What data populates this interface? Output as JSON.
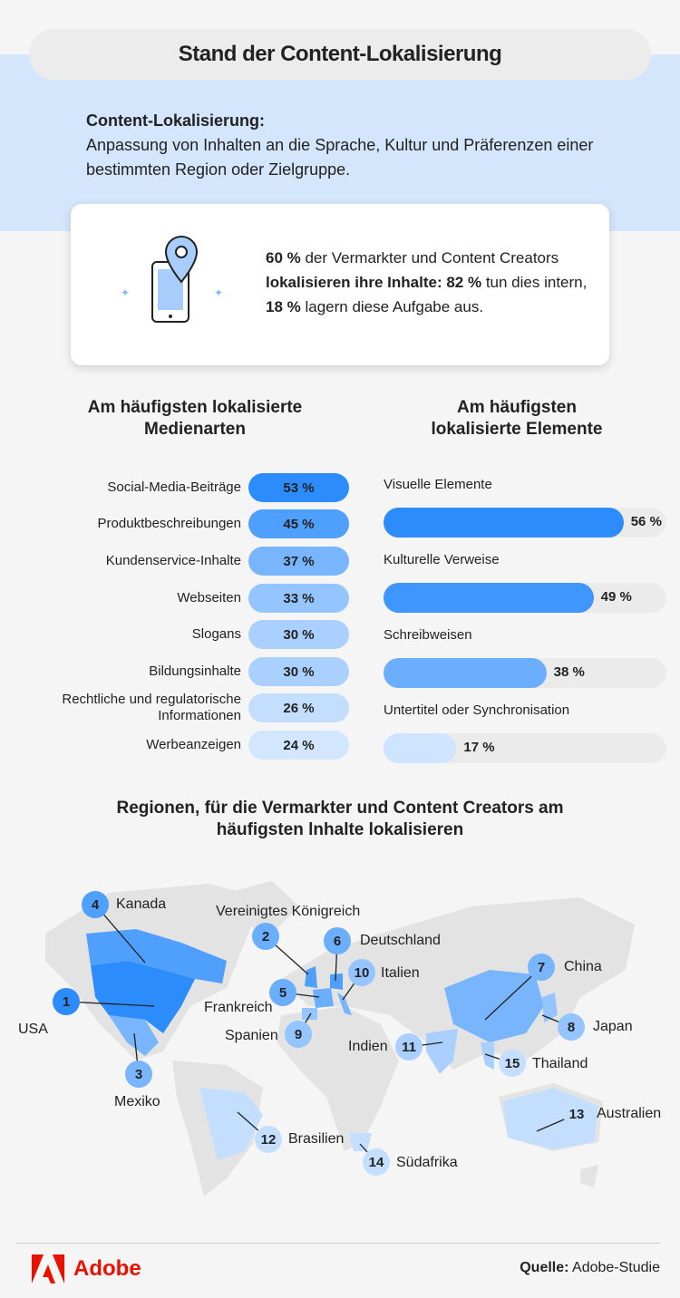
{
  "title": "Stand der Content-Lokalisierung",
  "definition": {
    "term": "Content-Lokalisierung:",
    "text": "Anpassung von Inhalten an die Sprache, Kultur und Präferenzen einer bestimmten Region oder Zielgruppe."
  },
  "stat": {
    "p1": "60 %",
    "p2": " der Vermarkter und Content Creators ",
    "p3": "lokalisieren ihre Inhalte: 82 %",
    "p4": " tun dies intern, ",
    "p5": "18 %",
    "p6": " lagern diese Aufgabe aus."
  },
  "chart_data": [
    {
      "type": "bar",
      "title": "Am häufigsten lokalisierte Medienarten",
      "categories": [
        "Social-Media-Beiträge",
        "Produktbeschreibungen",
        "Kundenservice-Inhalte",
        "Webseiten",
        "Slogans",
        "Bildungsinhalte",
        "Rechtliche und regulatorische Informationen",
        "Werbeanzeigen"
      ],
      "values": [
        53,
        45,
        37,
        33,
        30,
        30,
        26,
        24
      ],
      "labels": [
        "53 %",
        "45 %",
        "37 %",
        "33 %",
        "30 %",
        "30 %",
        "26 %",
        "24 %"
      ],
      "colors": [
        "#2d8cfb",
        "#4f9ffc",
        "#78b5fd",
        "#95c5fe",
        "#a9d0fe",
        "#a9d0fe",
        "#c4dffe",
        "#d2e6fe"
      ]
    },
    {
      "type": "bar",
      "title": "Am häufigsten lokalisierte Elemente",
      "categories": [
        "Visuelle Elemente",
        "Kulturelle Verweise",
        "Schreibweisen",
        "Untertitel oder Synchronisation"
      ],
      "values": [
        56,
        49,
        38,
        17
      ],
      "labels": [
        "56 %",
        "49 %",
        "38 %",
        "17 %"
      ],
      "colors": [
        "#2d8cfb",
        "#3f96fc",
        "#6aaefd",
        "#cfe4fe"
      ],
      "xlim": [
        0,
        66
      ]
    }
  ],
  "regions": {
    "title": "Regionen, für die Vermarkter und Content Creators am häufigsten lnhalte lokalisieren",
    "items": [
      {
        "rank": "1",
        "name": "USA"
      },
      {
        "rank": "2",
        "name": "Vereinigtes Königreich"
      },
      {
        "rank": "3",
        "name": "Mexiko"
      },
      {
        "rank": "4",
        "name": "Kanada"
      },
      {
        "rank": "5",
        "name": "Frankreich"
      },
      {
        "rank": "6",
        "name": "Deutschland"
      },
      {
        "rank": "7",
        "name": "China"
      },
      {
        "rank": "8",
        "name": "Japan"
      },
      {
        "rank": "9",
        "name": "Spanien"
      },
      {
        "rank": "10",
        "name": "Italien"
      },
      {
        "rank": "11",
        "name": "Indien"
      },
      {
        "rank": "12",
        "name": "Brasilien"
      },
      {
        "rank": "13",
        "name": "Australien"
      },
      {
        "rank": "14",
        "name": "Südafrika"
      },
      {
        "rank": "15",
        "name": "Thailand"
      }
    ]
  },
  "footer": {
    "brand": "Adobe",
    "source_label": "Quelle:",
    "source": " Adobe-Studie"
  }
}
